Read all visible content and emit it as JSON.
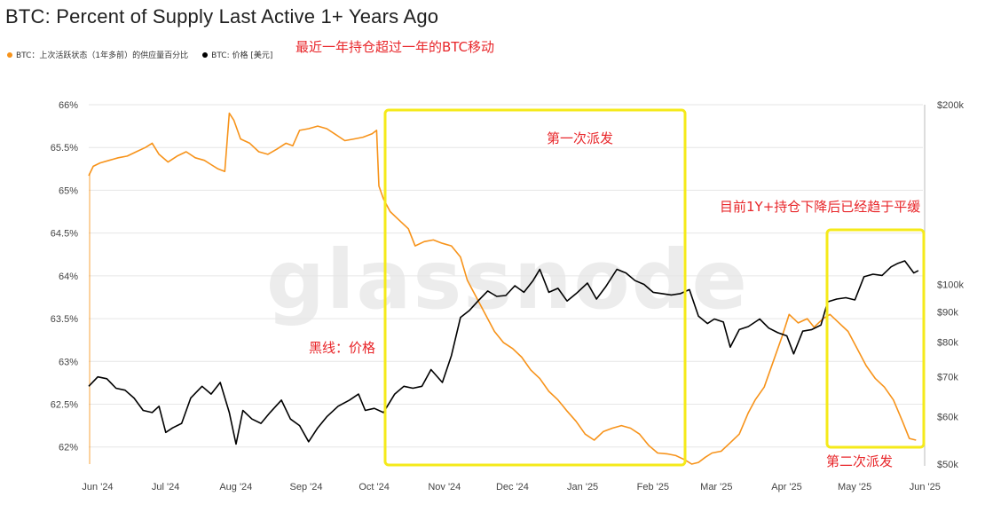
{
  "title": "BTC: Percent of Supply Last Active 1+ Years Ago",
  "watermark": "glassnode",
  "legend": [
    {
      "label": "BTC：上次活跃状态（1年多前）的供应量百分比",
      "color": "#f7931a"
    },
    {
      "label": "BTC: 价格 [美元]",
      "color": "#000000"
    }
  ],
  "annotations": {
    "top": "最近一年持仓超过一年的BTC移动",
    "first": "第一次派发",
    "plateau": "目前1Y+持仓下降后已经趋于平缓",
    "price_line": "黑线：价格",
    "second": "第二次派发"
  },
  "highlight_color": "#f5ea1a",
  "chart_data": {
    "type": "line",
    "title": "BTC: Percent of Supply Last Active 1+ Years Ago",
    "x_ticks": [
      "Jun '24",
      "Jul '24",
      "Aug '24",
      "Sep '24",
      "Oct '24",
      "Nov '24",
      "Dec '24",
      "Jan '25",
      "Feb '25",
      "Mar '25",
      "Apr '25",
      "May '25",
      "Jun '25"
    ],
    "y_left": {
      "unit": "%",
      "ticks": [
        "62%",
        "62.5%",
        "63%",
        "63.5%",
        "64%",
        "64.5%",
        "65%",
        "65.5%",
        "66%"
      ],
      "range": [
        61.8,
        66
      ]
    },
    "y_right": {
      "scale": "log",
      "ticks": [
        "$50k",
        "$60k",
        "$70k",
        "$80k",
        "$90k",
        "$100k",
        "$200k"
      ],
      "range": [
        50000,
        200000
      ]
    },
    "grid": true,
    "series": [
      {
        "name": "BTC：上次活跃状态（1年多前）的供应量百分比",
        "axis": "left",
        "color": "#f7931a",
        "points": [
          [
            "2024-06-01",
            65.17
          ],
          [
            "2024-06-03",
            65.28
          ],
          [
            "2024-06-06",
            65.32
          ],
          [
            "2024-06-10",
            65.35
          ],
          [
            "2024-06-14",
            65.38
          ],
          [
            "2024-06-18",
            65.4
          ],
          [
            "2024-06-22",
            65.45
          ],
          [
            "2024-06-26",
            65.5
          ],
          [
            "2024-06-29",
            65.55
          ],
          [
            "2024-07-02",
            65.42
          ],
          [
            "2024-07-06",
            65.33
          ],
          [
            "2024-07-10",
            65.4
          ],
          [
            "2024-07-14",
            65.45
          ],
          [
            "2024-07-18",
            65.38
          ],
          [
            "2024-07-22",
            65.35
          ],
          [
            "2024-07-25",
            65.3
          ],
          [
            "2024-07-28",
            65.25
          ],
          [
            "2024-07-31",
            65.22
          ],
          [
            "2024-08-02",
            65.9
          ],
          [
            "2024-08-04",
            65.82
          ],
          [
            "2024-08-07",
            65.6
          ],
          [
            "2024-08-11",
            65.55
          ],
          [
            "2024-08-15",
            65.45
          ],
          [
            "2024-08-19",
            65.42
          ],
          [
            "2024-08-23",
            65.48
          ],
          [
            "2024-08-27",
            65.55
          ],
          [
            "2024-08-30",
            65.52
          ],
          [
            "2024-09-02",
            65.7
          ],
          [
            "2024-09-06",
            65.72
          ],
          [
            "2024-09-10",
            65.75
          ],
          [
            "2024-09-14",
            65.72
          ],
          [
            "2024-09-18",
            65.65
          ],
          [
            "2024-09-22",
            65.58
          ],
          [
            "2024-09-26",
            65.6
          ],
          [
            "2024-09-30",
            65.62
          ],
          [
            "2024-10-04",
            65.66
          ],
          [
            "2024-10-06",
            65.7
          ],
          [
            "2024-10-07",
            65.05
          ],
          [
            "2024-10-09",
            64.9
          ],
          [
            "2024-10-12",
            64.75
          ],
          [
            "2024-10-16",
            64.65
          ],
          [
            "2024-10-20",
            64.55
          ],
          [
            "2024-10-23",
            64.35
          ],
          [
            "2024-10-27",
            64.4
          ],
          [
            "2024-10-31",
            64.42
          ],
          [
            "2024-11-04",
            64.38
          ],
          [
            "2024-11-08",
            64.35
          ],
          [
            "2024-11-12",
            64.22
          ],
          [
            "2024-11-15",
            63.95
          ],
          [
            "2024-11-19",
            63.75
          ],
          [
            "2024-11-23",
            63.55
          ],
          [
            "2024-11-27",
            63.35
          ],
          [
            "2024-12-01",
            63.22
          ],
          [
            "2024-12-05",
            63.15
          ],
          [
            "2024-12-09",
            63.05
          ],
          [
            "2024-12-13",
            62.9
          ],
          [
            "2024-12-17",
            62.8
          ],
          [
            "2024-12-21",
            62.65
          ],
          [
            "2024-12-25",
            62.55
          ],
          [
            "2024-12-29",
            62.42
          ],
          [
            "2025-01-02",
            62.3
          ],
          [
            "2025-01-06",
            62.15
          ],
          [
            "2025-01-10",
            62.08
          ],
          [
            "2025-01-14",
            62.18
          ],
          [
            "2025-01-18",
            62.22
          ],
          [
            "2025-01-22",
            62.25
          ],
          [
            "2025-01-26",
            62.22
          ],
          [
            "2025-01-30",
            62.15
          ],
          [
            "2025-02-03",
            62.02
          ],
          [
            "2025-02-07",
            61.93
          ],
          [
            "2025-02-11",
            61.92
          ],
          [
            "2025-02-15",
            61.9
          ],
          [
            "2025-02-19",
            61.85
          ],
          [
            "2025-02-22",
            61.8
          ],
          [
            "2025-02-25",
            61.82
          ],
          [
            "2025-02-28",
            61.88
          ],
          [
            "2025-03-03",
            61.93
          ],
          [
            "2025-03-07",
            61.95
          ],
          [
            "2025-03-11",
            62.05
          ],
          [
            "2025-03-15",
            62.15
          ],
          [
            "2025-03-19",
            62.4
          ],
          [
            "2025-03-22",
            62.55
          ],
          [
            "2025-03-26",
            62.7
          ],
          [
            "2025-03-30",
            63.0
          ],
          [
            "2025-04-03",
            63.3
          ],
          [
            "2025-04-06",
            63.55
          ],
          [
            "2025-04-10",
            63.45
          ],
          [
            "2025-04-14",
            63.5
          ],
          [
            "2025-04-17",
            63.4
          ],
          [
            "2025-04-21",
            63.5
          ],
          [
            "2025-04-24",
            63.55
          ],
          [
            "2025-04-28",
            63.45
          ],
          [
            "2025-05-02",
            63.35
          ],
          [
            "2025-05-06",
            63.15
          ],
          [
            "2025-05-10",
            62.95
          ],
          [
            "2025-05-14",
            62.8
          ],
          [
            "2025-05-18",
            62.7
          ],
          [
            "2025-05-22",
            62.55
          ],
          [
            "2025-05-26",
            62.3
          ],
          [
            "2025-05-29",
            62.1
          ],
          [
            "2025-06-01",
            62.08
          ]
        ]
      },
      {
        "name": "BTC: 价格 [美元]",
        "axis": "right",
        "color": "#000000",
        "points": [
          [
            "2024-06-01",
            67500
          ],
          [
            "2024-06-05",
            70000
          ],
          [
            "2024-06-09",
            69500
          ],
          [
            "2024-06-13",
            67000
          ],
          [
            "2024-06-17",
            66500
          ],
          [
            "2024-06-21",
            64500
          ],
          [
            "2024-06-25",
            61500
          ],
          [
            "2024-06-29",
            61000
          ],
          [
            "2024-07-02",
            62500
          ],
          [
            "2024-07-05",
            56500
          ],
          [
            "2024-07-08",
            57500
          ],
          [
            "2024-07-12",
            58500
          ],
          [
            "2024-07-16",
            64500
          ],
          [
            "2024-07-21",
            67500
          ],
          [
            "2024-07-25",
            65500
          ],
          [
            "2024-07-29",
            68500
          ],
          [
            "2024-08-02",
            61000
          ],
          [
            "2024-08-05",
            54000
          ],
          [
            "2024-08-08",
            61500
          ],
          [
            "2024-08-12",
            59500
          ],
          [
            "2024-08-16",
            58500
          ],
          [
            "2024-08-20",
            61000
          ],
          [
            "2024-08-25",
            64000
          ],
          [
            "2024-08-29",
            59500
          ],
          [
            "2024-09-02",
            58000
          ],
          [
            "2024-09-06",
            54500
          ],
          [
            "2024-09-10",
            57500
          ],
          [
            "2024-09-14",
            60000
          ],
          [
            "2024-09-19",
            62500
          ],
          [
            "2024-09-24",
            64000
          ],
          [
            "2024-09-28",
            65500
          ],
          [
            "2024-10-01",
            61500
          ],
          [
            "2024-10-05",
            62000
          ],
          [
            "2024-10-09",
            61000
          ],
          [
            "2024-10-14",
            65500
          ],
          [
            "2024-10-18",
            67500
          ],
          [
            "2024-10-22",
            67000
          ],
          [
            "2024-10-26",
            67500
          ],
          [
            "2024-10-30",
            72000
          ],
          [
            "2024-11-04",
            68500
          ],
          [
            "2024-11-08",
            76000
          ],
          [
            "2024-11-12",
            88000
          ],
          [
            "2024-11-16",
            90500
          ],
          [
            "2024-11-20",
            94000
          ],
          [
            "2024-11-24",
            97500
          ],
          [
            "2024-11-28",
            95500
          ],
          [
            "2024-12-02",
            95800
          ],
          [
            "2024-12-06",
            99500
          ],
          [
            "2024-12-10",
            97000
          ],
          [
            "2024-12-14",
            101500
          ],
          [
            "2024-12-17",
            106000
          ],
          [
            "2024-12-21",
            97000
          ],
          [
            "2024-12-25",
            98500
          ],
          [
            "2024-12-29",
            93800
          ],
          [
            "2025-01-02",
            96500
          ],
          [
            "2025-01-07",
            100500
          ],
          [
            "2025-01-11",
            94500
          ],
          [
            "2025-01-15",
            99000
          ],
          [
            "2025-01-20",
            106000
          ],
          [
            "2025-01-24",
            104500
          ],
          [
            "2025-01-28",
            101500
          ],
          [
            "2025-02-01",
            100000
          ],
          [
            "2025-02-05",
            97000
          ],
          [
            "2025-02-09",
            96500
          ],
          [
            "2025-02-13",
            96000
          ],
          [
            "2025-02-17",
            96500
          ],
          [
            "2025-02-21",
            98000
          ],
          [
            "2025-02-25",
            88500
          ],
          [
            "2025-03-01",
            86000
          ],
          [
            "2025-03-04",
            87500
          ],
          [
            "2025-03-08",
            86500
          ],
          [
            "2025-03-11",
            78500
          ],
          [
            "2025-03-15",
            84000
          ],
          [
            "2025-03-19",
            85000
          ],
          [
            "2025-03-24",
            87500
          ],
          [
            "2025-03-28",
            84500
          ],
          [
            "2025-04-01",
            83000
          ],
          [
            "2025-04-05",
            82000
          ],
          [
            "2025-04-08",
            76500
          ],
          [
            "2025-04-12",
            83500
          ],
          [
            "2025-04-16",
            84000
          ],
          [
            "2025-04-20",
            85500
          ],
          [
            "2025-04-23",
            93500
          ],
          [
            "2025-04-27",
            94500
          ],
          [
            "2025-05-01",
            95000
          ],
          [
            "2025-05-05",
            94200
          ],
          [
            "2025-05-09",
            103000
          ],
          [
            "2025-05-13",
            104000
          ],
          [
            "2025-05-17",
            103500
          ],
          [
            "2025-05-21",
            107000
          ],
          [
            "2025-05-24",
            108500
          ],
          [
            "2025-05-27",
            109500
          ],
          [
            "2025-05-31",
            104500
          ],
          [
            "2025-06-02",
            105500
          ]
        ]
      }
    ]
  }
}
